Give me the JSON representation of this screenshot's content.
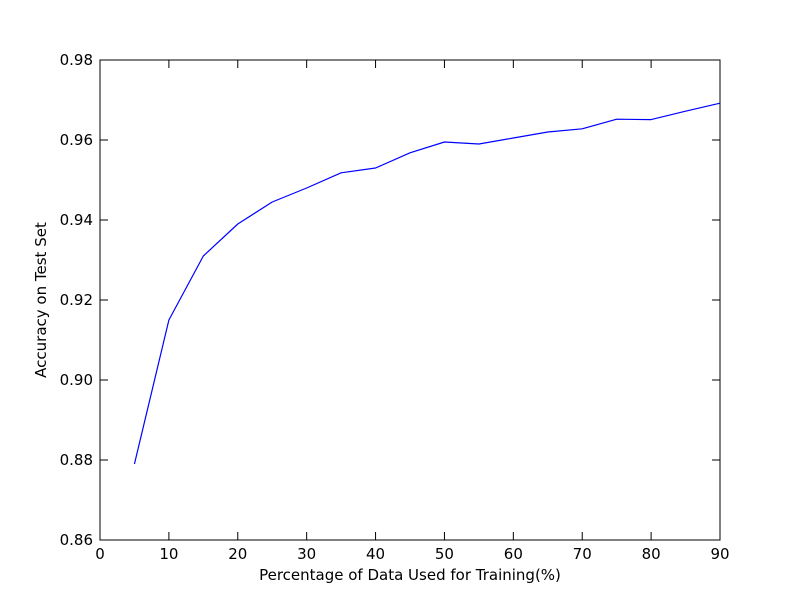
{
  "chart_data": {
    "type": "line",
    "title": "",
    "xlabel": "Percentage of Data Used for Training(%)",
    "ylabel": "Accuracy on Test Set",
    "xlim": [
      0,
      90
    ],
    "ylim": [
      0.86,
      0.98
    ],
    "xticks": [
      0,
      10,
      20,
      30,
      40,
      50,
      60,
      70,
      80,
      90
    ],
    "yticks": [
      0.86,
      0.88,
      0.9,
      0.92,
      0.94,
      0.96,
      0.98
    ],
    "ytick_labels": [
      "0.86",
      "0.88",
      "0.90",
      "0.92",
      "0.94",
      "0.96",
      "0.98"
    ],
    "grid": false,
    "legend": "none",
    "series": [
      {
        "color": "#0000ff",
        "x": [
          5,
          10,
          15,
          20,
          25,
          30,
          35,
          40,
          45,
          50,
          55,
          60,
          65,
          70,
          75,
          80,
          85,
          90
        ],
        "values": [
          0.879,
          0.915,
          0.931,
          0.939,
          0.9445,
          0.948,
          0.9518,
          0.953,
          0.9568,
          0.9595,
          0.959,
          0.9605,
          0.962,
          0.9628,
          0.9652,
          0.9651,
          0.9672,
          0.9692
        ]
      }
    ]
  }
}
